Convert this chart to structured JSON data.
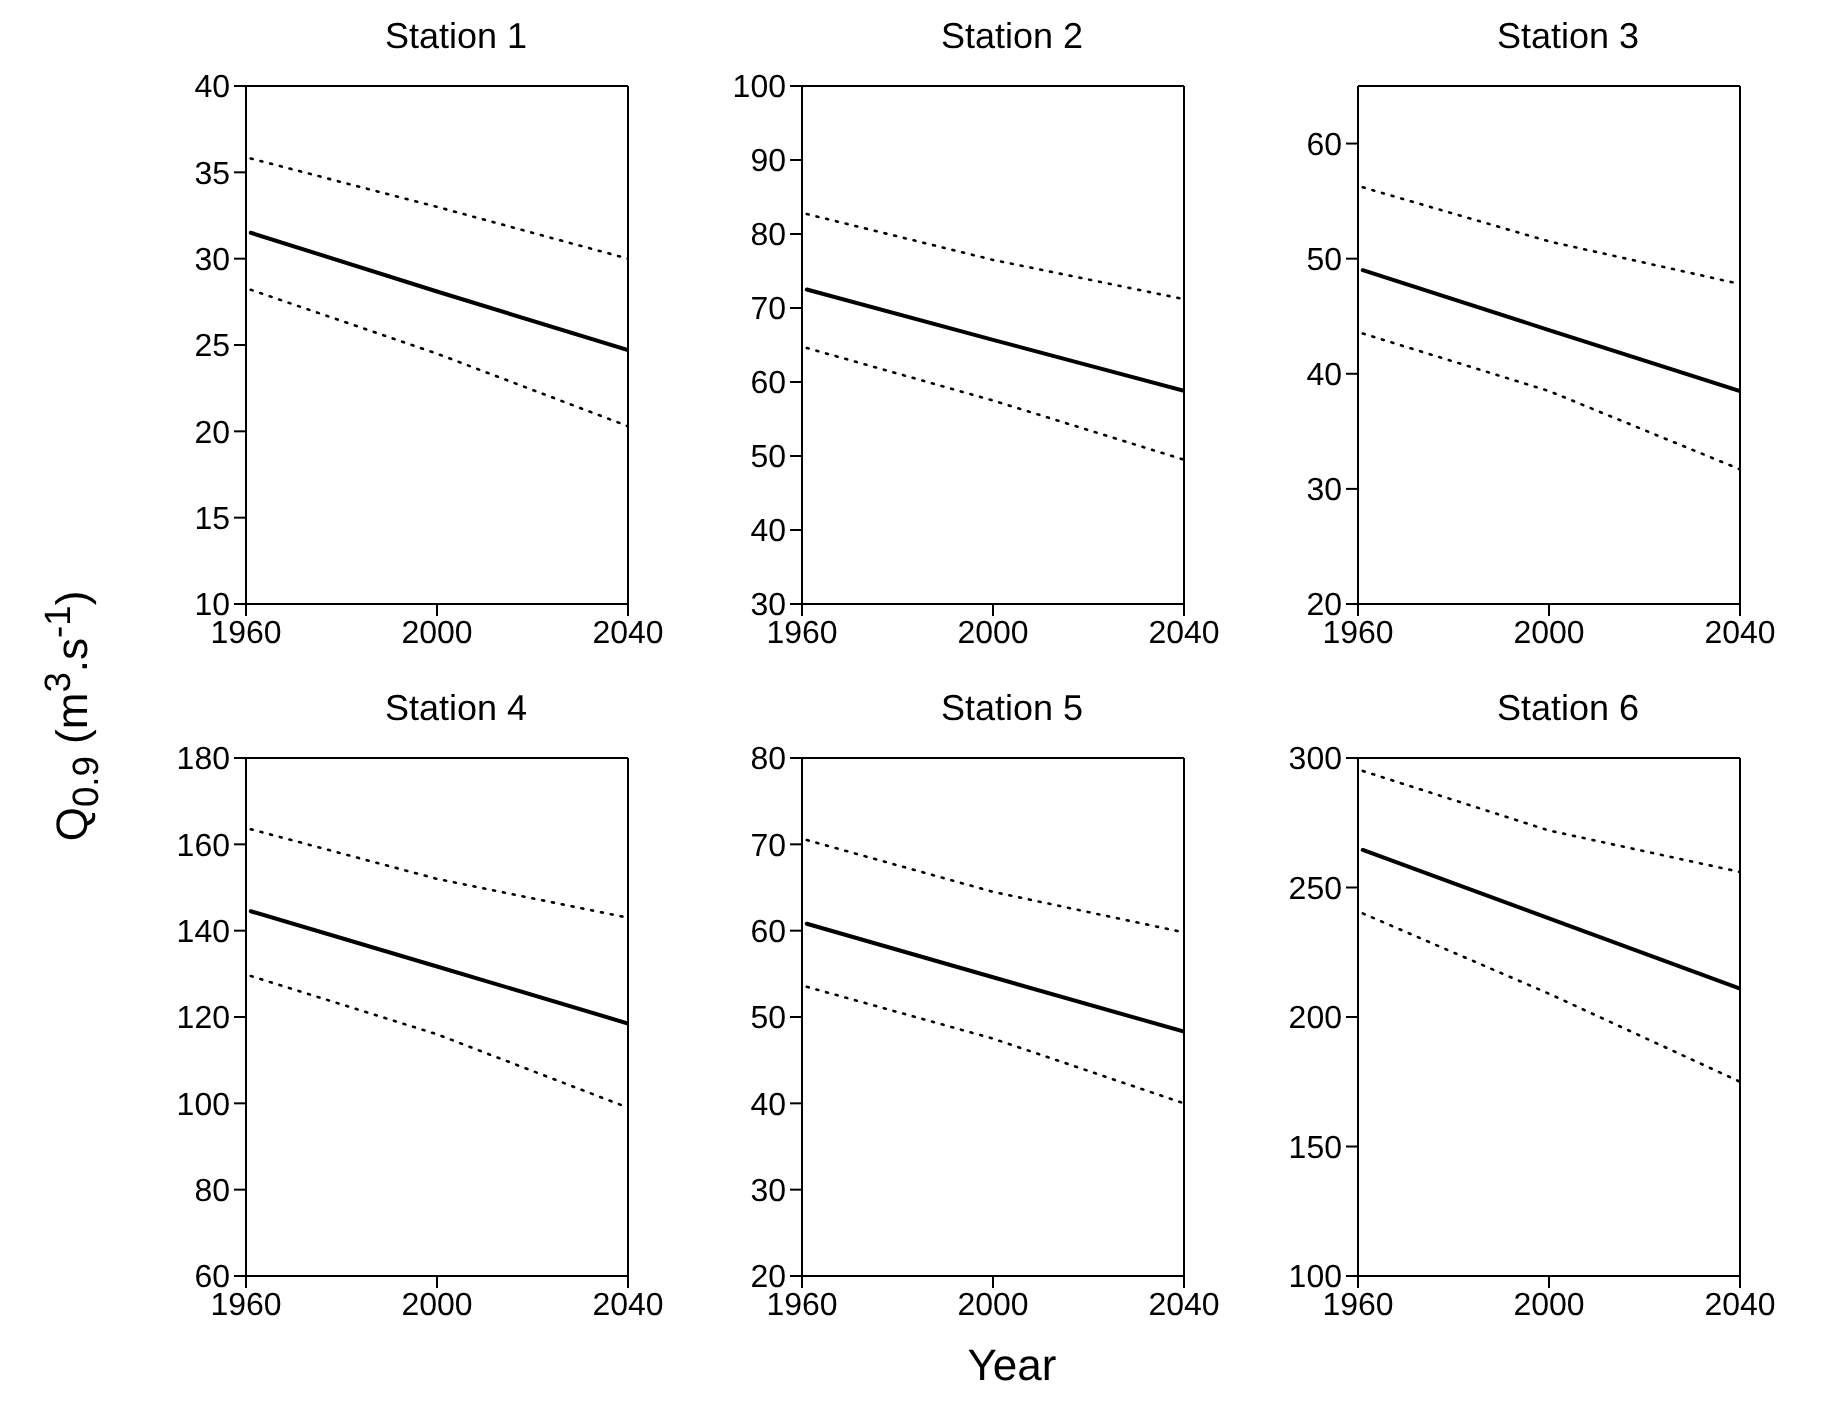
{
  "chart_data": [
    {
      "type": "line",
      "title": "Station 1",
      "ylabel": "Q$_{0.9}$ (m$^{3}$.s$^{-1}$)",
      "x": [
        1961,
        2000,
        2040
      ],
      "xlim": [
        1960,
        2040
      ],
      "xticks": [
        1960,
        2000,
        2040
      ],
      "ylim": [
        10,
        40
      ],
      "yticks": [
        10,
        15,
        20,
        25,
        30,
        35,
        40
      ],
      "series": [
        {
          "color": "#000000",
          "line_style": "dotted",
          "values": [
            35.8,
            33,
            30
          ]
        },
        {
          "color": "#000000",
          "line_style": "solid",
          "values": [
            31.5,
            28.1,
            24.7
          ]
        },
        {
          "color": "#000000",
          "line_style": "dotted",
          "values": [
            28.2,
            24.5,
            20.3
          ]
        }
      ]
    },
    {
      "type": "line",
      "title": "Station 2",
      "x": [
        1961,
        2000,
        2040
      ],
      "xlim": [
        1960,
        2040
      ],
      "xticks": [
        1960,
        2000,
        2040
      ],
      "ylim": [
        30,
        100
      ],
      "yticks": [
        30,
        40,
        50,
        60,
        70,
        80,
        90,
        100
      ],
      "series": [
        {
          "color": "#000000",
          "line_style": "dotted",
          "values": [
            82.7,
            76.5,
            71.2
          ]
        },
        {
          "color": "#000000",
          "line_style": "solid",
          "values": [
            72.5,
            65.7,
            58.8
          ]
        },
        {
          "color": "#000000",
          "line_style": "dotted",
          "values": [
            64.6,
            57.5,
            49.5
          ]
        }
      ]
    },
    {
      "type": "line",
      "title": "Station 3",
      "x": [
        1961,
        2000,
        2040
      ],
      "xlim": [
        1960,
        2040
      ],
      "xticks": [
        1960,
        2000,
        2040
      ],
      "ylim": [
        20,
        65
      ],
      "yticks": [
        20,
        30,
        40,
        50,
        60
      ],
      "series": [
        {
          "color": "#000000",
          "line_style": "dotted",
          "values": [
            56.2,
            51.5,
            47.8
          ]
        },
        {
          "color": "#000000",
          "line_style": "solid",
          "values": [
            49,
            43.8,
            38.5
          ]
        },
        {
          "color": "#000000",
          "line_style": "dotted",
          "values": [
            43.5,
            38.5,
            31.7
          ]
        }
      ]
    },
    {
      "type": "line",
      "title": "Station 4",
      "x": [
        1961,
        2000,
        2040
      ],
      "xlim": [
        1960,
        2040
      ],
      "xticks": [
        1960,
        2000,
        2040
      ],
      "ylim": [
        60,
        180
      ],
      "yticks": [
        60,
        80,
        100,
        120,
        140,
        160,
        180
      ],
      "series": [
        {
          "color": "#000000",
          "line_style": "dotted",
          "values": [
            163.5,
            152,
            143
          ]
        },
        {
          "color": "#000000",
          "line_style": "solid",
          "values": [
            144.5,
            131.7,
            118.5
          ]
        },
        {
          "color": "#000000",
          "line_style": "dotted",
          "values": [
            129.5,
            116,
            99
          ]
        }
      ]
    },
    {
      "type": "line",
      "title": "Station 5",
      "xlabel": "Year",
      "x": [
        1961,
        2000,
        2040
      ],
      "xlim": [
        1960,
        2040
      ],
      "xticks": [
        1960,
        2000,
        2040
      ],
      "ylim": [
        20,
        80
      ],
      "yticks": [
        20,
        30,
        40,
        50,
        60,
        70,
        80
      ],
      "series": [
        {
          "color": "#000000",
          "line_style": "dotted",
          "values": [
            70.5,
            64.5,
            59.8
          ]
        },
        {
          "color": "#000000",
          "line_style": "solid",
          "values": [
            60.8,
            54.6,
            48.3
          ]
        },
        {
          "color": "#000000",
          "line_style": "dotted",
          "values": [
            53.5,
            47.5,
            40
          ]
        }
      ]
    },
    {
      "type": "line",
      "title": "Station 6",
      "x": [
        1961,
        2000,
        2040
      ],
      "xlim": [
        1960,
        2040
      ],
      "xticks": [
        1960,
        2000,
        2040
      ],
      "ylim": [
        100,
        300
      ],
      "yticks": [
        100,
        150,
        200,
        250,
        300
      ],
      "series": [
        {
          "color": "#000000",
          "line_style": "dotted",
          "values": [
            295,
            272,
            256
          ]
        },
        {
          "color": "#000000",
          "line_style": "solid",
          "values": [
            264.5,
            238.1,
            211
          ]
        },
        {
          "color": "#000000",
          "line_style": "dotted",
          "values": [
            240,
            209,
            175
          ]
        }
      ]
    }
  ]
}
